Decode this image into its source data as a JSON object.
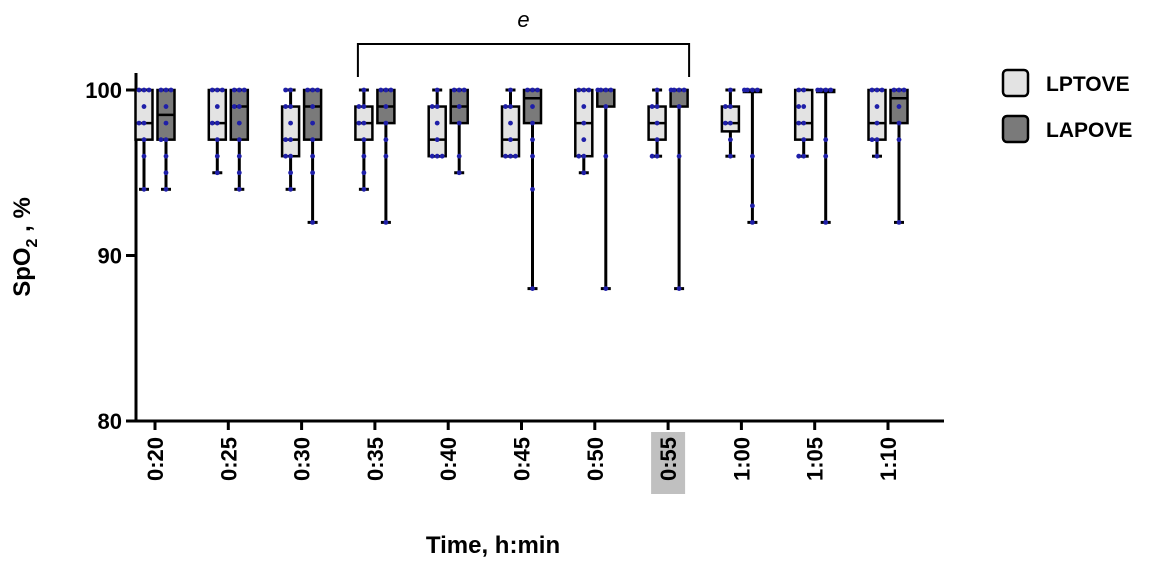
{
  "chart_data": {
    "type": "box",
    "xlabel": "Time, h:min",
    "ylabel_parts": {
      "main": "SpO",
      "sub": "2",
      "suffix": " , %"
    },
    "ylim": [
      80,
      100
    ],
    "yticks": [
      80,
      90,
      100
    ],
    "categories": [
      "0:20",
      "0:25",
      "0:30",
      "0:35",
      "0:40",
      "0:45",
      "0:50",
      "0:55",
      "1:00",
      "1:05",
      "1:10"
    ],
    "highlight_category": "0:55",
    "highlight_color": "#c0c0c0",
    "annotation": {
      "text": "e",
      "from": "0:35",
      "to": "0:55"
    },
    "point_color": "#1f1fa8",
    "series": [
      {
        "name": "LPTOVE",
        "fill": "#e3e3e3",
        "boxes": [
          {
            "min": 94,
            "q1": 97,
            "median": 98,
            "q3": 100,
            "max": 100,
            "points": [
              100,
              100,
              100,
              99,
              98,
              98,
              97,
              96,
              94
            ]
          },
          {
            "min": 95,
            "q1": 97,
            "median": 98,
            "q3": 100,
            "max": 100,
            "points": [
              100,
              100,
              100,
              99,
              98,
              98,
              97,
              96,
              95
            ]
          },
          {
            "min": 94,
            "q1": 96,
            "median": 97,
            "q3": 99,
            "max": 100,
            "points": [
              100,
              100,
              99,
              99,
              98,
              97,
              97,
              96,
              96,
              95,
              94
            ]
          },
          {
            "min": 94,
            "q1": 97,
            "median": 98,
            "q3": 99,
            "max": 100,
            "points": [
              100,
              99,
              99,
              98,
              98,
              97,
              96,
              95,
              94
            ]
          },
          {
            "min": 96,
            "q1": 96,
            "median": 97,
            "q3": 99,
            "max": 100,
            "points": [
              100,
              99,
              99,
              98,
              97,
              96,
              96,
              96
            ]
          },
          {
            "min": 96,
            "q1": 96,
            "median": 97,
            "q3": 99,
            "max": 100,
            "points": [
              100,
              99,
              99,
              98,
              97,
              96,
              96,
              96
            ]
          },
          {
            "min": 95,
            "q1": 96,
            "median": 98,
            "q3": 100,
            "max": 100,
            "points": [
              100,
              100,
              100,
              99,
              98,
              97,
              96,
              96,
              95
            ]
          },
          {
            "min": 96,
            "q1": 97,
            "median": 98,
            "q3": 99,
            "max": 100,
            "points": [
              100,
              99,
              99,
              98,
              97,
              96,
              96
            ]
          },
          {
            "min": 96,
            "q1": 97.5,
            "median": 98,
            "q3": 99,
            "max": 100,
            "points": [
              100,
              99,
              99,
              98,
              98,
              97,
              96
            ]
          },
          {
            "min": 96,
            "q1": 97,
            "median": 98,
            "q3": 100,
            "max": 100,
            "points": [
              100,
              100,
              99,
              99,
              98,
              98,
              97,
              96,
              96
            ]
          },
          {
            "min": 96,
            "q1": 97,
            "median": 98,
            "q3": 100,
            "max": 100,
            "points": [
              100,
              100,
              100,
              99,
              98,
              97,
              97,
              96
            ]
          }
        ]
      },
      {
        "name": "LAPOVE",
        "fill": "#7a7a7a",
        "boxes": [
          {
            "min": 94,
            "q1": 97,
            "median": 98.5,
            "q3": 100,
            "max": 100,
            "points": [
              100,
              100,
              100,
              99,
              98,
              97,
              97,
              96,
              95,
              94
            ]
          },
          {
            "min": 94,
            "q1": 97,
            "median": 99,
            "q3": 100,
            "max": 100,
            "points": [
              100,
              100,
              100,
              99,
              99,
              98,
              97,
              96,
              95,
              94
            ]
          },
          {
            "min": 92,
            "q1": 97,
            "median": 99,
            "q3": 100,
            "max": 100,
            "points": [
              100,
              100,
              100,
              99,
              98,
              97,
              96,
              95,
              92
            ]
          },
          {
            "min": 92,
            "q1": 98,
            "median": 99,
            "q3": 100,
            "max": 100,
            "points": [
              100,
              100,
              100,
              99,
              98,
              97,
              96,
              92
            ]
          },
          {
            "min": 95,
            "q1": 98,
            "median": 99,
            "q3": 100,
            "max": 100,
            "points": [
              100,
              100,
              100,
              99,
              98,
              96,
              95
            ]
          },
          {
            "min": 88,
            "q1": 98,
            "median": 99.5,
            "q3": 100,
            "max": 100,
            "points": [
              100,
              100,
              100,
              99,
              98,
              97,
              96,
              94,
              88
            ]
          },
          {
            "min": 88,
            "q1": 99,
            "median": 100,
            "q3": 100,
            "max": 100,
            "points": [
              100,
              100,
              100,
              100,
              99,
              96,
              88
            ]
          },
          {
            "min": 88,
            "q1": 99,
            "median": 100,
            "q3": 100,
            "max": 100,
            "points": [
              100,
              100,
              100,
              100,
              99,
              96,
              88
            ]
          },
          {
            "min": 92,
            "q1": 100,
            "median": 100,
            "q3": 100,
            "max": 100,
            "points": [
              100,
              100,
              100,
              100,
              96,
              93,
              92
            ]
          },
          {
            "min": 92,
            "q1": 100,
            "median": 100,
            "q3": 100,
            "max": 100,
            "points": [
              100,
              100,
              100,
              100,
              97,
              96,
              92
            ]
          },
          {
            "min": 92,
            "q1": 98,
            "median": 99.5,
            "q3": 100,
            "max": 100,
            "points": [
              100,
              100,
              100,
              99,
              98,
              97,
              92
            ]
          }
        ]
      }
    ]
  }
}
